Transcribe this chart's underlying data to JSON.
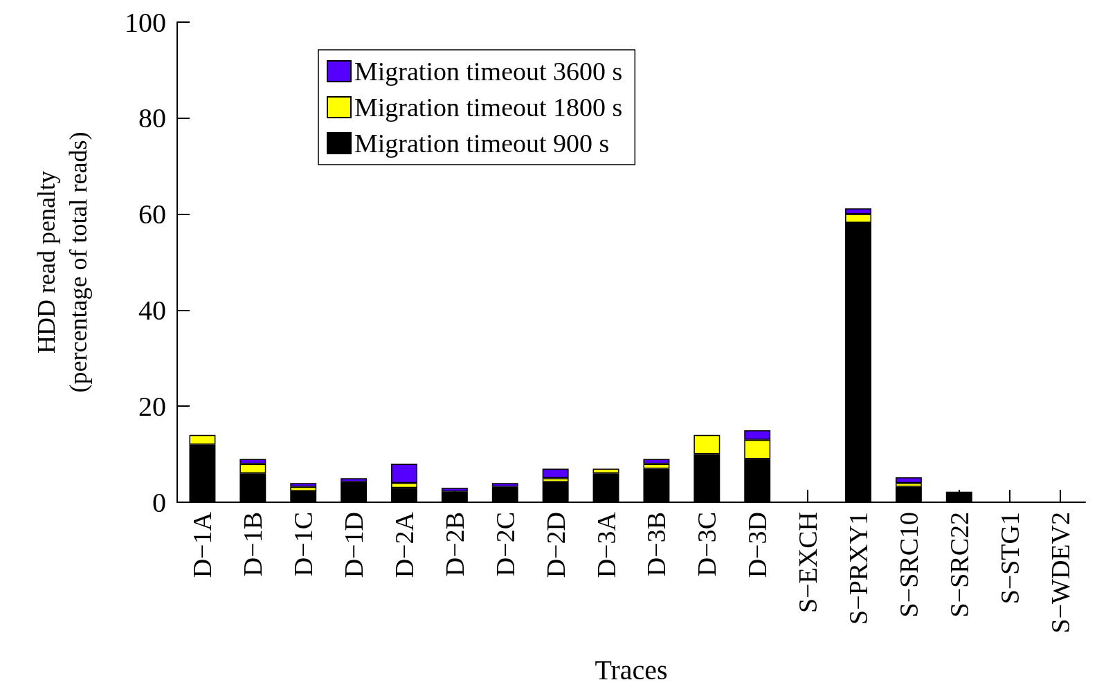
{
  "chart_data": {
    "type": "bar",
    "stacked": true,
    "xlabel": "Traces",
    "ylabel": "HDD read penalty\n(percentage of total reads)",
    "categories": [
      "D−1A",
      "D−1B",
      "D−1C",
      "D−1D",
      "D−2A",
      "D−2B",
      "D−2C",
      "D−2D",
      "D−3A",
      "D−3B",
      "D−3C",
      "D−3D",
      "S−EXCH",
      "S−PRXY1",
      "S−SRC10",
      "S−SRC22",
      "S−STG1",
      "S−WDEV2"
    ],
    "series": [
      {
        "name": "Migration timeout 900 s",
        "color": "#000000",
        "values": [
          12,
          6,
          2.3,
          4.2,
          3,
          2.2,
          3.2,
          4.2,
          6,
          7,
          10,
          9,
          0,
          58.2,
          3.2,
          2.2,
          0,
          0
        ]
      },
      {
        "name": "Migration timeout 1800 s",
        "color": "#ffff00",
        "values": [
          2,
          2,
          0.9,
          0,
          1,
          0,
          0,
          0.8,
          1,
          1,
          4,
          4,
          0,
          1.8,
          0.8,
          0,
          0,
          0
        ]
      },
      {
        "name": "Migration timeout 3600 s",
        "color": "#5500ff",
        "values": [
          0,
          1,
          0.8,
          0.8,
          4,
          0.8,
          0.8,
          2,
          0,
          1,
          0,
          2,
          0,
          1.2,
          1.2,
          0,
          0,
          0
        ]
      }
    ],
    "ylim": [
      0,
      100
    ],
    "yticks": [
      0,
      20,
      40,
      60,
      80,
      100
    ],
    "grid": false,
    "legend": "top"
  }
}
